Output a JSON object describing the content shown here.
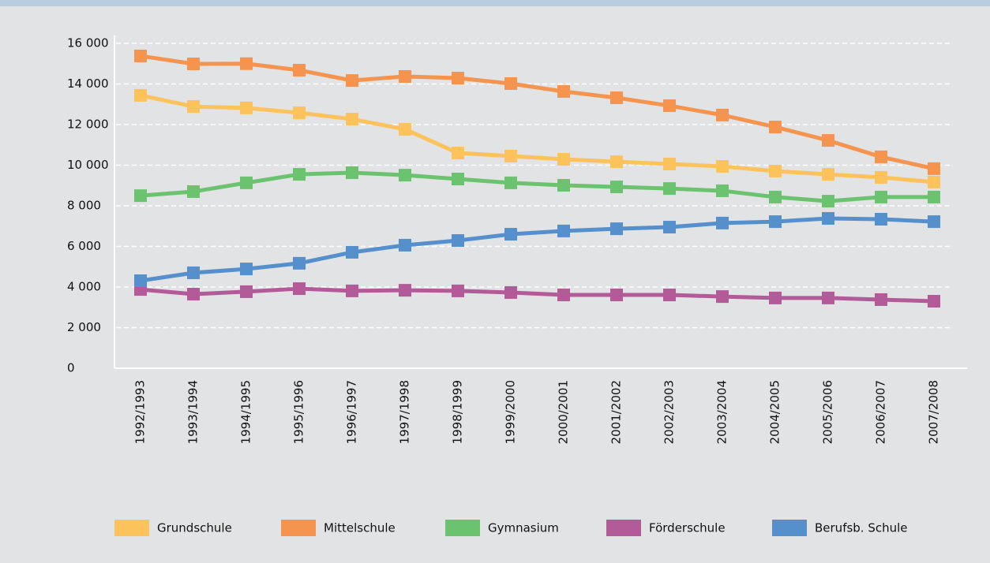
{
  "chart_data": {
    "type": "line",
    "categories": [
      "1992/1993",
      "1993/1994",
      "1994/1995",
      "1995/1996",
      "1996/1997",
      "1997/1998",
      "1998/1999",
      "1999/2000",
      "2000/2001",
      "2001/2002",
      "2002/2003",
      "2003/2004",
      "2004/2005",
      "2005/2006",
      "2006/2007",
      "2007/2008"
    ],
    "series": [
      {
        "name": "Grundschule",
        "color": "#fcc25c",
        "values": [
          13440,
          12890,
          12820,
          12580,
          12270,
          11770,
          10600,
          10450,
          10290,
          10170,
          10060,
          9940,
          9710,
          9550,
          9400,
          9170
        ]
      },
      {
        "name": "Mittelschule",
        "color": "#f5944f",
        "values": [
          15380,
          14990,
          15000,
          14680,
          14170,
          14370,
          14290,
          14020,
          13630,
          13320,
          12930,
          12470,
          11880,
          11220,
          10410,
          9830
        ]
      },
      {
        "name": "Gymnasium",
        "color": "#6cc36f",
        "values": [
          8500,
          8700,
          9130,
          9550,
          9630,
          9510,
          9320,
          9130,
          9010,
          8930,
          8850,
          8740,
          8430,
          8230,
          8430,
          8430
        ]
      },
      {
        "name": "Förderschule",
        "color": "#b35a98",
        "values": [
          3880,
          3650,
          3770,
          3920,
          3810,
          3840,
          3810,
          3730,
          3610,
          3610,
          3610,
          3530,
          3460,
          3460,
          3380,
          3300
        ]
      },
      {
        "name": "Berufsb. Schule",
        "color": "#5590cc",
        "values": [
          4310,
          4700,
          4890,
          5170,
          5710,
          6060,
          6290,
          6600,
          6760,
          6870,
          6950,
          7150,
          7220,
          7380,
          7340,
          7220
        ]
      }
    ],
    "ylim": [
      0,
      16000
    ],
    "yticks": [
      0,
      {
        "value": 2000,
        "label": "2 000"
      },
      {
        "value": 4000,
        "label": "4 000"
      },
      {
        "value": 6000,
        "label": "6 000"
      },
      {
        "value": 8000,
        "label": "8 000"
      },
      {
        "value": 10000,
        "label": "10 000"
      },
      {
        "value": 12000,
        "label": "12 000"
      },
      {
        "value": 14000,
        "label": "14 000"
      },
      {
        "value": 16000,
        "label": "16 000"
      }
    ],
    "grid": true,
    "legend": "bottom"
  }
}
